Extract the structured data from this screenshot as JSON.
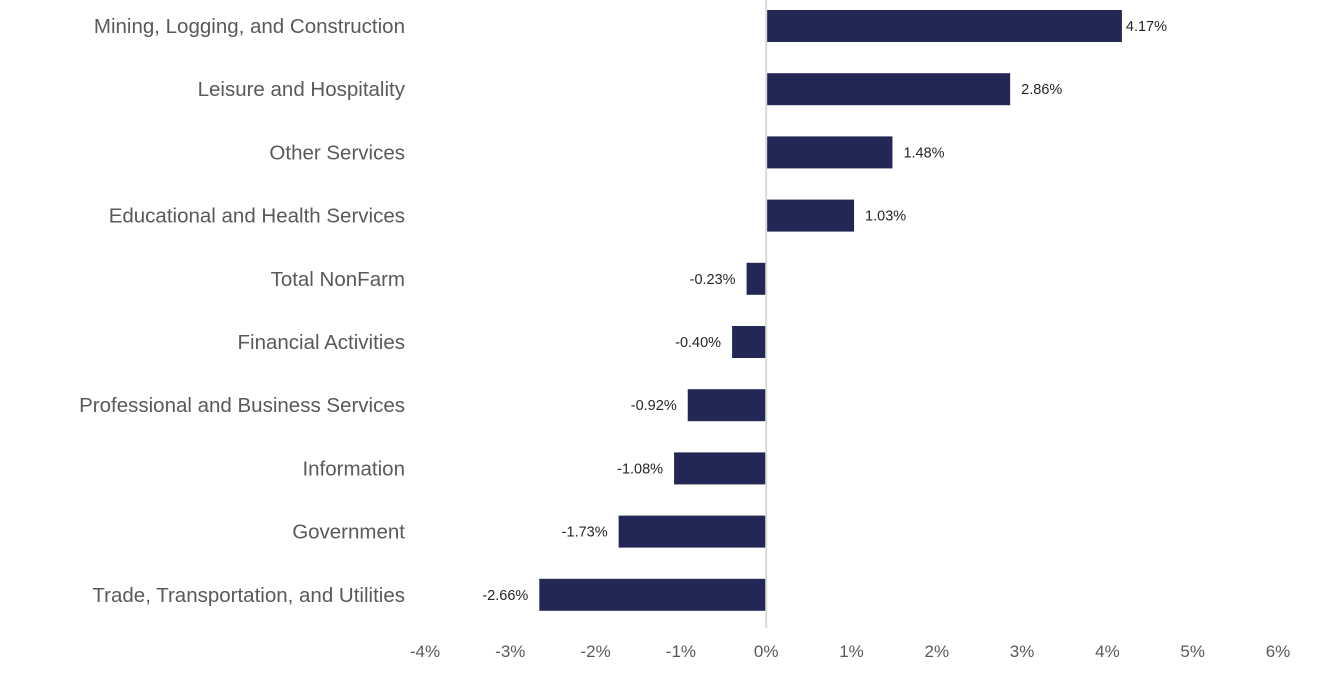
{
  "chart_data": {
    "type": "bar",
    "orientation": "horizontal",
    "categories": [
      "Mining, Logging, and Construction",
      "Leisure and Hospitality",
      "Other Services",
      "Educational and Health Services",
      "Total NonFarm",
      "Financial Activities",
      "Professional and Business Services",
      "Information",
      "Government",
      "Trade, Transportation, and Utilities"
    ],
    "values": [
      4.17,
      2.86,
      1.48,
      1.03,
      -0.23,
      -0.4,
      -0.92,
      -1.08,
      -1.73,
      -2.66
    ],
    "data_labels": [
      "4.17%",
      "2.86%",
      "1.48%",
      "1.03%",
      "-0.23%",
      "-0.40%",
      "-0.92%",
      "-1.08%",
      "-1.73%",
      "-2.66%"
    ],
    "xlim": [
      -4,
      6
    ],
    "x_ticks": [
      -4,
      -3,
      -2,
      -1,
      0,
      1,
      2,
      3,
      4,
      5,
      6
    ],
    "x_tick_labels": [
      "-4%",
      "-3%",
      "-2%",
      "-1%",
      "0%",
      "1%",
      "2%",
      "3%",
      "4%",
      "5%",
      "6%"
    ],
    "grid": false,
    "bar_color": "#232755",
    "axis_color": "#d9d9d9"
  }
}
